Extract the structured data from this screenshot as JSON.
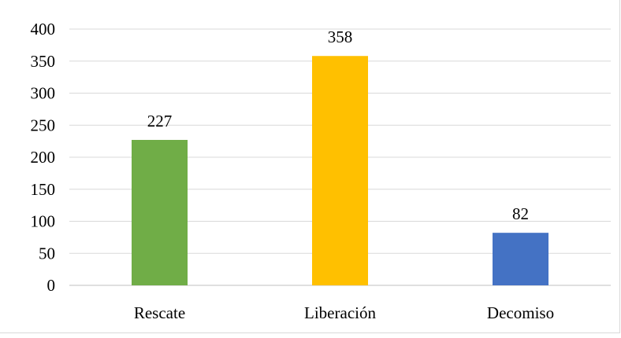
{
  "chart_data": {
    "type": "bar",
    "title": "",
    "xlabel": "",
    "ylabel": "",
    "categories": [
      "Rescate",
      "Liberación",
      "Decomiso"
    ],
    "values": [
      227,
      358,
      82
    ],
    "data_labels": [
      "227",
      "358",
      "82"
    ],
    "colors": [
      "#70ad47",
      "#ffc000",
      "#4472c4"
    ],
    "ylim": [
      0,
      400
    ],
    "yticks": [
      "0",
      "50",
      "100",
      "150",
      "200",
      "250",
      "300",
      "350",
      "400"
    ],
    "grid": true,
    "legend": "none"
  }
}
